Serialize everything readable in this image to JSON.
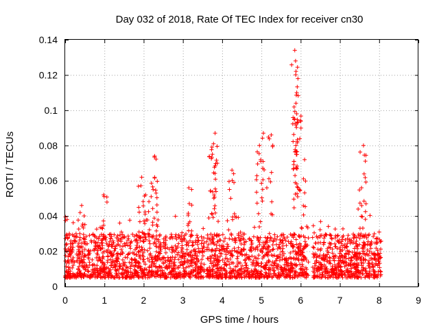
{
  "chart_data": {
    "type": "scatter",
    "title": "Day 032 of 2018, Rate Of TEC Index for receiver cn30",
    "xlabel": "GPS time / hours",
    "ylabel": "ROTI / TECUs",
    "xlim": [
      0,
      9
    ],
    "ylim": [
      0,
      0.14
    ],
    "xticks": [
      0,
      1,
      2,
      3,
      4,
      5,
      6,
      7,
      8,
      9
    ],
    "yticks": [
      0,
      0.02,
      0.04,
      0.06,
      0.08,
      0.1,
      0.12,
      0.14
    ],
    "xtick_labels": [
      "0",
      "1",
      "2",
      "3",
      "4",
      "5",
      "6",
      "7",
      "8",
      "9"
    ],
    "ytick_labels": [
      "0",
      "0.02",
      "0.04",
      "0.06",
      "0.08",
      "0.1",
      "0.12",
      "0.14"
    ],
    "grid": true,
    "marker": "+",
    "color": "#ff0000",
    "data_x_range": [
      0,
      8.05
    ],
    "baseline_band": [
      0.005,
      0.03
    ],
    "peaks": [
      {
        "x": 0.05,
        "y": 0.038
      },
      {
        "x": 0.42,
        "y": 0.046
      },
      {
        "x": 0.98,
        "y": 0.052
      },
      {
        "x": 1.95,
        "y": 0.062
      },
      {
        "x": 2.05,
        "y": 0.052
      },
      {
        "x": 2.28,
        "y": 0.074
      },
      {
        "x": 2.28,
        "y": 0.062
      },
      {
        "x": 3.15,
        "y": 0.056
      },
      {
        "x": 3.82,
        "y": 0.087
      },
      {
        "x": 3.78,
        "y": 0.081
      },
      {
        "x": 3.75,
        "y": 0.075
      },
      {
        "x": 4.25,
        "y": 0.066
      },
      {
        "x": 4.95,
        "y": 0.08
      },
      {
        "x": 5.05,
        "y": 0.087
      },
      {
        "x": 5.25,
        "y": 0.086
      },
      {
        "x": 5.85,
        "y": 0.134
      },
      {
        "x": 5.87,
        "y": 0.128
      },
      {
        "x": 5.93,
        "y": 0.118
      },
      {
        "x": 5.9,
        "y": 0.11
      },
      {
        "x": 5.88,
        "y": 0.104
      },
      {
        "x": 5.9,
        "y": 0.098
      },
      {
        "x": 6.1,
        "y": 0.072
      },
      {
        "x": 7.6,
        "y": 0.08
      },
      {
        "x": 7.55,
        "y": 0.056
      }
    ],
    "gaps": [
      [
        3.55,
        3.6
      ],
      [
        6.2,
        6.3
      ]
    ]
  }
}
